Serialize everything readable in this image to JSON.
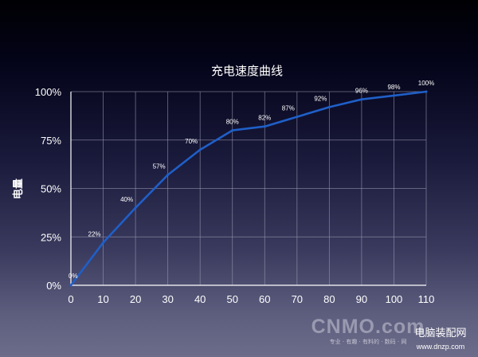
{
  "chart_data": {
    "type": "line",
    "title": "充电速度曲线",
    "xlabel": "",
    "ylabel": "电量",
    "x": [
      0,
      10,
      20,
      30,
      40,
      50,
      60,
      70,
      80,
      90,
      100,
      110
    ],
    "x_ticks": [
      "0",
      "10",
      "20",
      "30",
      "40",
      "50",
      "60",
      "70",
      "80",
      "90",
      "100",
      "110"
    ],
    "y_ticks": [
      "0%",
      "25%",
      "50%",
      "75%",
      "100%"
    ],
    "xlim": [
      0,
      110
    ],
    "ylim": [
      0,
      100
    ],
    "grid": true,
    "legend": "none",
    "series": [
      {
        "values": [
          0,
          22,
          40,
          57,
          70,
          80,
          82,
          87,
          92,
          96,
          98,
          100
        ],
        "labels": [
          "0%",
          "22%",
          "40%",
          "57%",
          "70%",
          "80%",
          "82%",
          "87%",
          "92%",
          "96%",
          "98%",
          "100%"
        ],
        "color": "#1f5fc8"
      }
    ]
  },
  "watermark": {
    "logo": "CNMO.com",
    "site_name": "电脑装配网",
    "slogan": "专业 · 有趣 · 有料的 · 数码 · 网",
    "url": "www.dnzp.com"
  },
  "colors": {
    "line": "#1f5fc8",
    "grid": "#9a9ab0",
    "axis": "#ffffff",
    "text": "#ffffff"
  }
}
